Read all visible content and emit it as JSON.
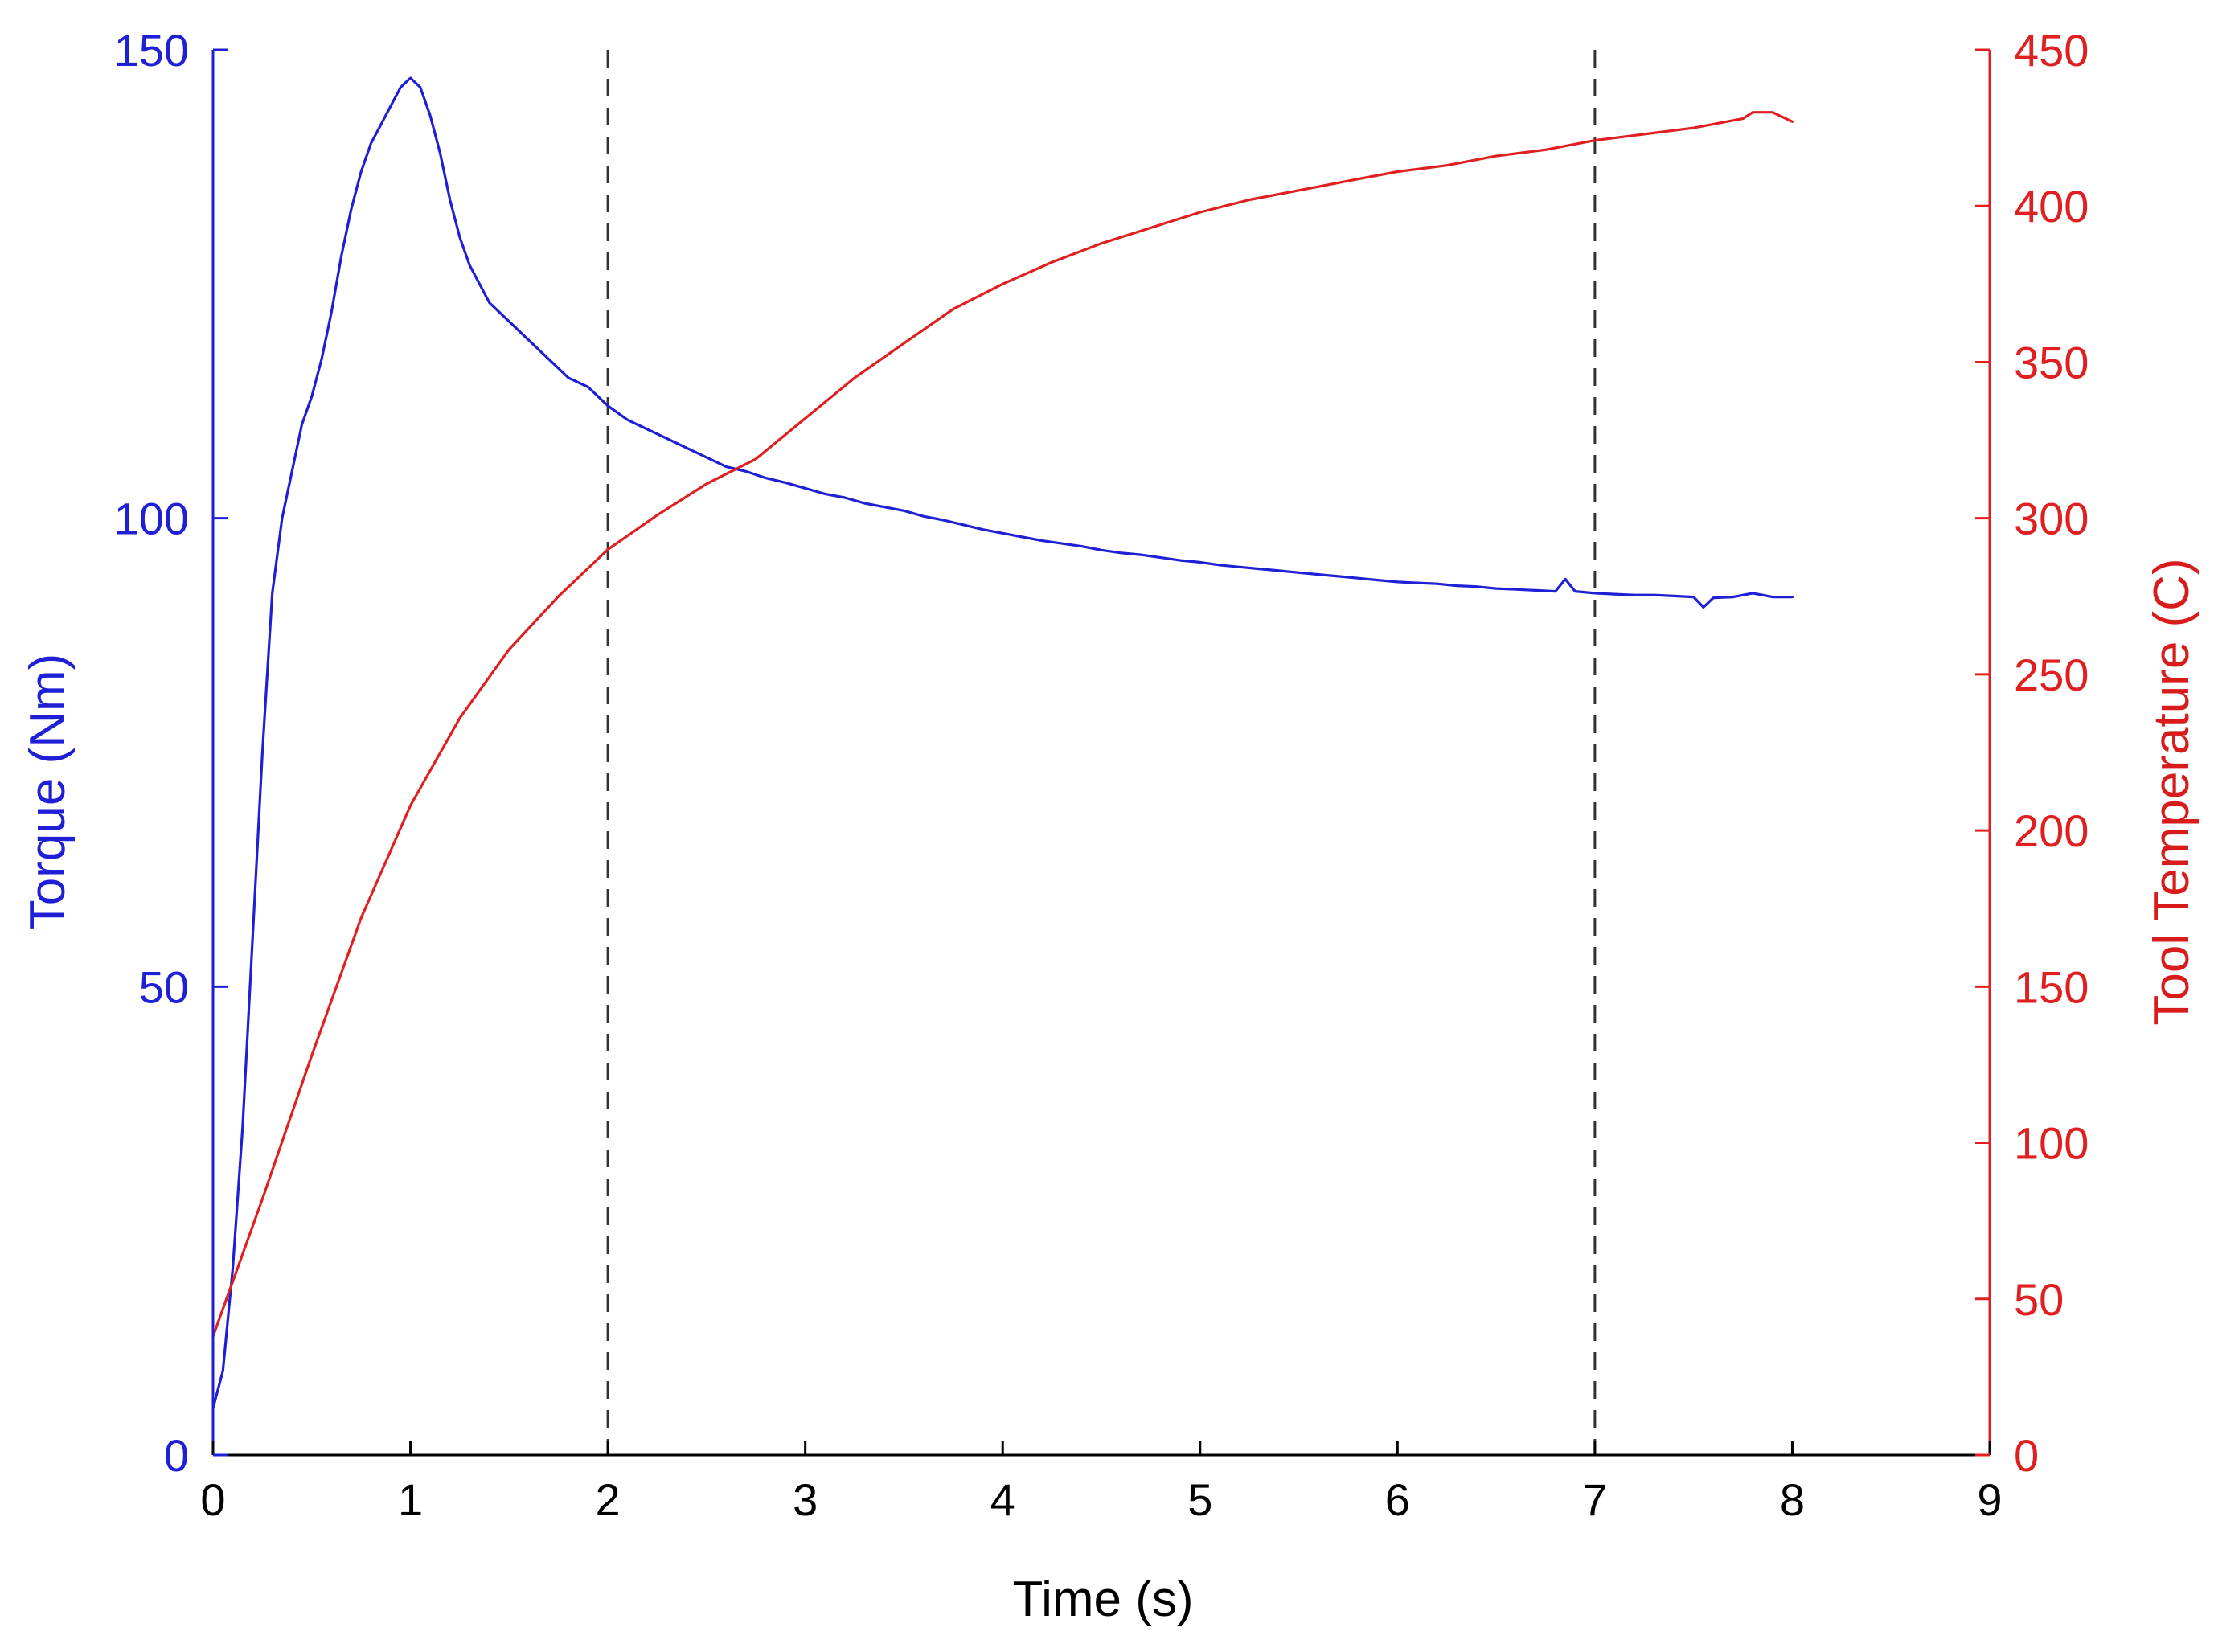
{
  "chart_data": {
    "type": "line",
    "title": "",
    "xlabel": "Time (s)",
    "ylabel_left": "Torque (Nm)",
    "ylabel_right": "Tool Temperature (C)",
    "xlim": [
      0,
      9
    ],
    "ylim_left": [
      0,
      150
    ],
    "ylim_right": [
      0,
      450
    ],
    "x_ticks": [
      "0",
      "1",
      "2",
      "3",
      "4",
      "5",
      "6",
      "7",
      "8",
      "9"
    ],
    "y_left_ticks": [
      "0",
      "50",
      "100",
      "150"
    ],
    "y_right_ticks": [
      "0",
      "50",
      "100",
      "150",
      "200",
      "250",
      "300",
      "350",
      "400",
      "450"
    ],
    "grid": false,
    "vertical_reference_lines": [
      2,
      7
    ],
    "colors": {
      "torque": "#1f1fd6",
      "temperature": "#e02020",
      "axes": "#000000",
      "reference": "#333333"
    },
    "series": [
      {
        "axis": "left",
        "x": [
          0,
          0.05,
          0.1,
          0.15,
          0.2,
          0.25,
          0.3,
          0.35,
          0.4,
          0.45,
          0.5,
          0.55,
          0.6,
          0.65,
          0.7,
          0.75,
          0.8,
          0.85,
          0.9,
          0.95,
          1.0,
          1.05,
          1.1,
          1.15,
          1.2,
          1.25,
          1.3,
          1.35,
          1.4,
          1.45,
          1.5,
          1.6,
          1.7,
          1.8,
          1.9,
          2.0,
          2.1,
          2.2,
          2.3,
          2.4,
          2.5,
          2.6,
          2.7,
          2.8,
          2.9,
          3.0,
          3.1,
          3.2,
          3.3,
          3.4,
          3.5,
          3.6,
          3.7,
          3.8,
          3.9,
          4.0,
          4.1,
          4.2,
          4.3,
          4.4,
          4.5,
          4.6,
          4.7,
          4.8,
          4.9,
          5.0,
          5.1,
          5.2,
          5.3,
          5.4,
          5.5,
          5.6,
          5.7,
          5.8,
          5.9,
          6.0,
          6.1,
          6.2,
          6.3,
          6.4,
          6.5,
          6.6,
          6.7,
          6.8,
          6.85,
          6.9,
          7.0,
          7.1,
          7.2,
          7.3,
          7.4,
          7.5,
          7.55,
          7.6,
          7.7,
          7.8,
          7.9,
          8.0
        ],
        "y": [
          5,
          9,
          20,
          35,
          55,
          75,
          92,
          100,
          105,
          110,
          113,
          117,
          122,
          128,
          133,
          137,
          140,
          142,
          144,
          146,
          147,
          146,
          143,
          139,
          134,
          130,
          127,
          125,
          123,
          122,
          121,
          119,
          117,
          115,
          114,
          112,
          110.5,
          109.5,
          108.5,
          107.5,
          106.5,
          105.5,
          105,
          104.3,
          103.8,
          103.2,
          102.6,
          102.2,
          101.6,
          101.2,
          100.8,
          100.2,
          99.8,
          99.3,
          98.8,
          98.4,
          98,
          97.6,
          97.3,
          97,
          96.6,
          96.3,
          96.1,
          95.8,
          95.5,
          95.3,
          95,
          94.8,
          94.6,
          94.4,
          94.2,
          94,
          93.8,
          93.6,
          93.4,
          93.2,
          93.1,
          93,
          92.8,
          92.7,
          92.5,
          92.4,
          92.3,
          92.2,
          93.5,
          92.2,
          92,
          91.9,
          91.8,
          91.8,
          91.7,
          91.6,
          90.5,
          91.5,
          91.6,
          92,
          91.6,
          91.6
        ]
      },
      {
        "axis": "right",
        "x": [
          0,
          0.25,
          0.5,
          0.75,
          1.0,
          1.25,
          1.5,
          1.75,
          2.0,
          2.25,
          2.5,
          2.75,
          3.0,
          3.25,
          3.5,
          3.75,
          4.0,
          4.25,
          4.5,
          4.75,
          5.0,
          5.25,
          5.5,
          5.75,
          6.0,
          6.25,
          6.5,
          6.75,
          7.0,
          7.25,
          7.5,
          7.75,
          7.8,
          7.9,
          8.0
        ],
        "y": [
          38,
          82,
          128,
          172,
          208,
          236,
          258,
          275,
          290,
          301,
          311,
          319,
          332,
          345,
          356,
          367,
          375,
          382,
          388,
          393,
          398,
          402,
          405,
          408,
          411,
          413,
          416,
          418,
          421,
          423,
          425,
          428,
          430,
          430,
          427
        ]
      }
    ]
  }
}
